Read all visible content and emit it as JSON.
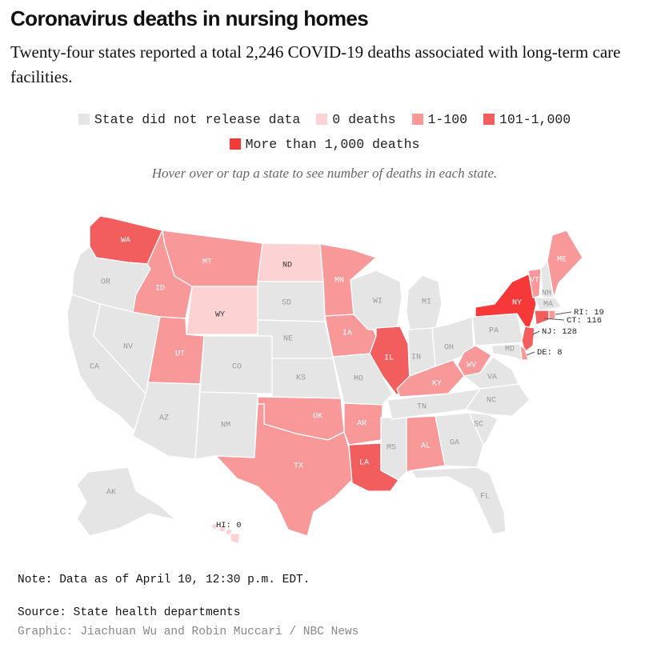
{
  "header": {
    "title": "Coronavirus deaths in nursing homes",
    "subtitle": "Twenty-four states reported a total 2,246 COVID-19 deaths associated with long-term care facilities."
  },
  "legend": {
    "items": [
      {
        "label": "State did not release data",
        "color": "#e5e5e5"
      },
      {
        "label": "0 deaths",
        "color": "#fcd2d2"
      },
      {
        "label": "1-100",
        "color": "#f89898"
      },
      {
        "label": "101-1,000",
        "color": "#f25e5e"
      },
      {
        "label": "More than 1,000 deaths",
        "color": "#f53838"
      }
    ]
  },
  "hint": "Hover over or tap a state to see number of deaths in each state.",
  "map": {
    "states": {
      "WA": "WA",
      "OR": "OR",
      "CA": "CA",
      "NV": "NV",
      "ID": "ID",
      "MT": "MT",
      "WY": "WY",
      "UT": "UT",
      "AZ": "AZ",
      "CO": "CO",
      "NM": "NM",
      "ND": "ND",
      "SD": "SD",
      "NE": "NE",
      "KS": "KS",
      "OK": "OK",
      "TX": "TX",
      "MN": "MN",
      "IA": "IA",
      "MO": "MO",
      "AR": "AR",
      "LA": "LA",
      "WI": "WI",
      "IL": "IL",
      "MS": "MS",
      "MI": "MI",
      "IN": "IN",
      "KY": "KY",
      "TN": "TN",
      "AL": "AL",
      "OH": "OH",
      "GA": "GA",
      "FL": "FL",
      "WV": "WV",
      "VA": "VA",
      "NC": "NC",
      "SC": "SC",
      "PA": "PA",
      "NY": "NY",
      "ME": "ME",
      "VT": "VT",
      "NH": "NH",
      "MA": "MA",
      "MD": "MD",
      "AK": "AK"
    },
    "callouts": {
      "RI": "RI: 19",
      "CT": "CT: 116",
      "NJ": "NJ: 128",
      "DE": "DE: 8",
      "HI": "HI: 0"
    }
  },
  "footer": {
    "note": "Note: Data as of April 10, 12:30 p.m. EDT.",
    "source": "Source: State health departments",
    "credit": "Graphic: Jiachuan Wu and Robin Muccari / NBC News"
  }
}
